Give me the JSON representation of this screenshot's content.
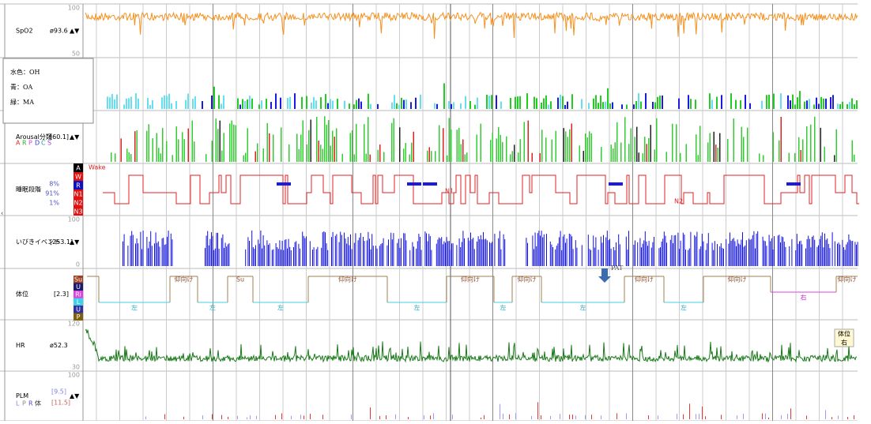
{
  "rows": [
    {
      "label": "SpO2",
      "value": "ø93.6",
      "arrows": "▲▼",
      "scale": [
        "100",
        "50"
      ]
    },
    {
      "label": "Arousal分類",
      "value": "[60.1]",
      "arrows": "▲▼",
      "letters": [
        "A",
        "R",
        "P",
        "D",
        "C",
        "S"
      ]
    },
    {
      "label": "睡眠段階",
      "percentages": [
        "8%",
        "91%",
        "1%"
      ],
      "stages": [
        "A",
        "W",
        "R",
        "N1",
        "N2",
        "N3"
      ],
      "annotations": [
        "Wake",
        "N1",
        "N2"
      ]
    },
    {
      "label": "いびきイベント",
      "value": "[253.1]",
      "arrows": "▲▼",
      "scale": [
        "100",
        "0"
      ]
    },
    {
      "label": "体位",
      "value": "[2.3]",
      "positions": [
        "Su",
        "U",
        "Ri",
        "L",
        "U",
        "P"
      ]
    },
    {
      "label": "HR",
      "value": "ø52.3",
      "scale": [
        "120",
        "30"
      ]
    },
    {
      "label": "PLM",
      "values": [
        "[9.5]",
        "[11.5]"
      ],
      "arrows": "▲▼",
      "letters": [
        "L",
        "P",
        "R",
        "体"
      ],
      "scale": [
        "100"
      ]
    }
  ],
  "legend": [
    "水色：OH",
    "青：OA",
    "緑：MA"
  ],
  "position_labels": [
    "左",
    "仰向け",
    "左",
    "Su",
    "左",
    "仰向け",
    "左",
    "仰向け",
    "左",
    "仰向け",
    "左",
    "仰向け",
    "左",
    "仰向け",
    "右",
    "仰向け"
  ],
  "pat": "PAT",
  "hr_badge": [
    "体位",
    "右"
  ]
}
